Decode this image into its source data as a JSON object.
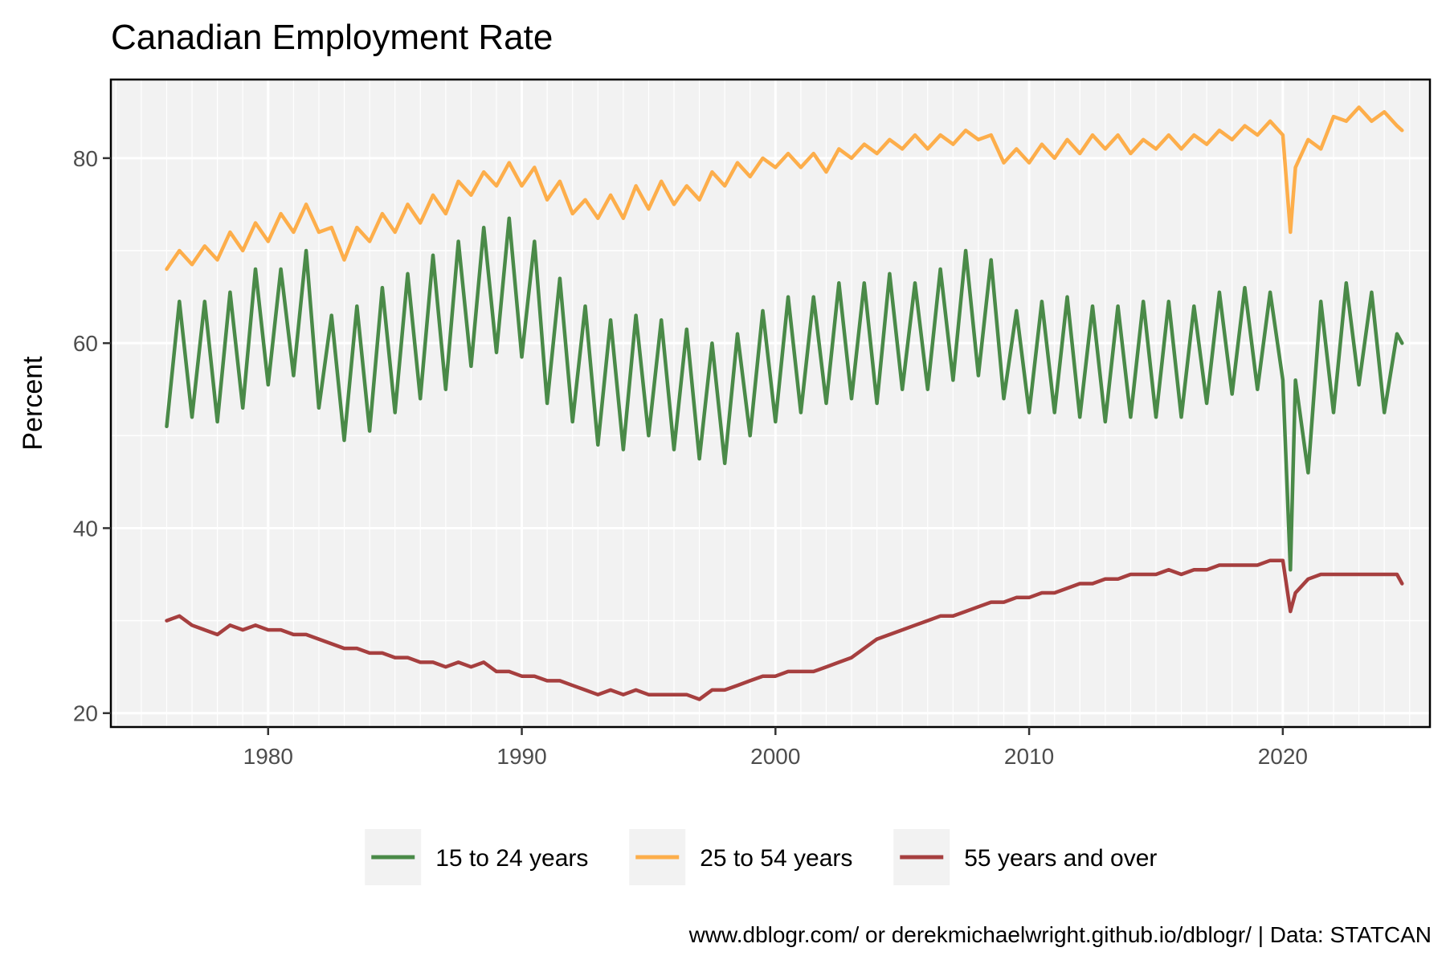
{
  "chart_data": {
    "type": "line",
    "title": "Canadian Employment Rate",
    "ylabel": "Percent",
    "xlabel": "",
    "caption": "www.dblogr.com/ or derekmichaelwright.github.io/dblogr/ | Data: STATCAN",
    "xlim": [
      1973.8,
      2025.8
    ],
    "ylim": [
      18.5,
      88.5
    ],
    "x_ticks": [
      1980,
      1990,
      2000,
      2010,
      2020
    ],
    "y_ticks": [
      20,
      40,
      60,
      80
    ],
    "grid": true,
    "legend_position": "bottom",
    "series": [
      {
        "name": "15 to 24 years",
        "color": "#4a8a48",
        "x": [
          1976.0,
          1976.5,
          1977.0,
          1977.5,
          1978.0,
          1978.5,
          1979.0,
          1979.5,
          1980.0,
          1980.5,
          1981.0,
          1981.5,
          1982.0,
          1982.5,
          1983.0,
          1983.5,
          1984.0,
          1984.5,
          1985.0,
          1985.5,
          1986.0,
          1986.5,
          1987.0,
          1987.5,
          1988.0,
          1988.5,
          1989.0,
          1989.5,
          1990.0,
          1990.5,
          1991.0,
          1991.5,
          1992.0,
          1992.5,
          1993.0,
          1993.5,
          1994.0,
          1994.5,
          1995.0,
          1995.5,
          1996.0,
          1996.5,
          1997.0,
          1997.5,
          1998.0,
          1998.5,
          1999.0,
          1999.5,
          2000.0,
          2000.5,
          2001.0,
          2001.5,
          2002.0,
          2002.5,
          2003.0,
          2003.5,
          2004.0,
          2004.5,
          2005.0,
          2005.5,
          2006.0,
          2006.5,
          2007.0,
          2007.5,
          2008.0,
          2008.5,
          2009.0,
          2009.5,
          2010.0,
          2010.5,
          2011.0,
          2011.5,
          2012.0,
          2012.5,
          2013.0,
          2013.5,
          2014.0,
          2014.5,
          2015.0,
          2015.5,
          2016.0,
          2016.5,
          2017.0,
          2017.5,
          2018.0,
          2018.5,
          2019.0,
          2019.5,
          2020.0,
          2020.3,
          2020.5,
          2021.0,
          2021.5,
          2022.0,
          2022.5,
          2023.0,
          2023.5,
          2024.0,
          2024.5,
          2024.7
        ],
        "y": [
          51,
          64.5,
          52,
          64.5,
          51.5,
          65.5,
          53,
          68,
          55.5,
          68,
          56.5,
          70,
          53,
          63,
          49.5,
          64,
          50.5,
          66,
          52.5,
          67.5,
          54,
          69.5,
          55,
          71,
          57.5,
          72.5,
          59,
          73.5,
          58.5,
          71,
          53.5,
          67,
          51.5,
          64,
          49,
          62.5,
          48.5,
          63,
          50,
          62.5,
          48.5,
          61.5,
          47.5,
          60,
          47,
          61,
          50,
          63.5,
          51.5,
          65,
          52.5,
          65,
          53.5,
          66.5,
          54,
          66.5,
          53.5,
          67.5,
          55,
          66.5,
          55,
          68,
          56,
          70,
          56.5,
          69,
          54,
          63.5,
          52.5,
          64.5,
          52.5,
          65,
          52,
          64,
          51.5,
          64,
          52,
          64.5,
          52,
          64.5,
          52,
          64,
          53.5,
          65.5,
          54.5,
          66,
          55,
          65.5,
          56,
          35.5,
          56,
          46,
          64.5,
          52.5,
          66.5,
          55.5,
          65.5,
          52.5,
          61,
          60
        ]
      },
      {
        "name": "25 to 54 years",
        "color": "#fdae4b",
        "x": [
          1976.0,
          1976.5,
          1977.0,
          1977.5,
          1978.0,
          1978.5,
          1979.0,
          1979.5,
          1980.0,
          1980.5,
          1981.0,
          1981.5,
          1982.0,
          1982.5,
          1983.0,
          1983.5,
          1984.0,
          1984.5,
          1985.0,
          1985.5,
          1986.0,
          1986.5,
          1987.0,
          1987.5,
          1988.0,
          1988.5,
          1989.0,
          1989.5,
          1990.0,
          1990.5,
          1991.0,
          1991.5,
          1992.0,
          1992.5,
          1993.0,
          1993.5,
          1994.0,
          1994.5,
          1995.0,
          1995.5,
          1996.0,
          1996.5,
          1997.0,
          1997.5,
          1998.0,
          1998.5,
          1999.0,
          1999.5,
          2000.0,
          2000.5,
          2001.0,
          2001.5,
          2002.0,
          2002.5,
          2003.0,
          2003.5,
          2004.0,
          2004.5,
          2005.0,
          2005.5,
          2006.0,
          2006.5,
          2007.0,
          2007.5,
          2008.0,
          2008.5,
          2009.0,
          2009.5,
          2010.0,
          2010.5,
          2011.0,
          2011.5,
          2012.0,
          2012.5,
          2013.0,
          2013.5,
          2014.0,
          2014.5,
          2015.0,
          2015.5,
          2016.0,
          2016.5,
          2017.0,
          2017.5,
          2018.0,
          2018.5,
          2019.0,
          2019.5,
          2020.0,
          2020.3,
          2020.5,
          2021.0,
          2021.5,
          2022.0,
          2022.5,
          2023.0,
          2023.5,
          2024.0,
          2024.5,
          2024.7
        ],
        "y": [
          68,
          70,
          68.5,
          70.5,
          69,
          72,
          70,
          73,
          71,
          74,
          72,
          75,
          72,
          72.5,
          69,
          72.5,
          71,
          74,
          72,
          75,
          73,
          76,
          74,
          77.5,
          76,
          78.5,
          77,
          79.5,
          77,
          79,
          75.5,
          77.5,
          74,
          75.5,
          73.5,
          76,
          73.5,
          77,
          74.5,
          77.5,
          75,
          77,
          75.5,
          78.5,
          77,
          79.5,
          78,
          80,
          79,
          80.5,
          79,
          80.5,
          78.5,
          81,
          80,
          81.5,
          80.5,
          82,
          81,
          82.5,
          81,
          82.5,
          81.5,
          83,
          82,
          82.5,
          79.5,
          81,
          79.5,
          81.5,
          80,
          82,
          80.5,
          82.5,
          81,
          82.5,
          80.5,
          82,
          81,
          82.5,
          81,
          82.5,
          81.5,
          83,
          82,
          83.5,
          82.5,
          84,
          82.5,
          72,
          79,
          82,
          81,
          84.5,
          84,
          85.5,
          84,
          85,
          83.5,
          83
        ]
      },
      {
        "name": "55 years and over",
        "color": "#a63f3f",
        "x": [
          1976.0,
          1976.5,
          1977.0,
          1977.5,
          1978.0,
          1978.5,
          1979.0,
          1979.5,
          1980.0,
          1980.5,
          1981.0,
          1981.5,
          1982.0,
          1982.5,
          1983.0,
          1983.5,
          1984.0,
          1984.5,
          1985.0,
          1985.5,
          1986.0,
          1986.5,
          1987.0,
          1987.5,
          1988.0,
          1988.5,
          1989.0,
          1989.5,
          1990.0,
          1990.5,
          1991.0,
          1991.5,
          1992.0,
          1992.5,
          1993.0,
          1993.5,
          1994.0,
          1994.5,
          1995.0,
          1995.5,
          1996.0,
          1996.5,
          1997.0,
          1997.5,
          1998.0,
          1998.5,
          1999.0,
          1999.5,
          2000.0,
          2000.5,
          2001.0,
          2001.5,
          2002.0,
          2002.5,
          2003.0,
          2003.5,
          2004.0,
          2004.5,
          2005.0,
          2005.5,
          2006.0,
          2006.5,
          2007.0,
          2007.5,
          2008.0,
          2008.5,
          2009.0,
          2009.5,
          2010.0,
          2010.5,
          2011.0,
          2011.5,
          2012.0,
          2012.5,
          2013.0,
          2013.5,
          2014.0,
          2014.5,
          2015.0,
          2015.5,
          2016.0,
          2016.5,
          2017.0,
          2017.5,
          2018.0,
          2018.5,
          2019.0,
          2019.5,
          2020.0,
          2020.3,
          2020.5,
          2021.0,
          2021.5,
          2022.0,
          2022.5,
          2023.0,
          2023.5,
          2024.0,
          2024.5,
          2024.7
        ],
        "y": [
          30,
          30.5,
          29.5,
          29,
          28.5,
          29.5,
          29,
          29.5,
          29,
          29,
          28.5,
          28.5,
          28,
          27.5,
          27,
          27,
          26.5,
          26.5,
          26,
          26,
          25.5,
          25.5,
          25,
          25.5,
          25,
          25.5,
          24.5,
          24.5,
          24,
          24,
          23.5,
          23.5,
          23,
          22.5,
          22,
          22.5,
          22,
          22.5,
          22,
          22,
          22,
          22,
          21.5,
          22.5,
          22.5,
          23,
          23.5,
          24,
          24,
          24.5,
          24.5,
          24.5,
          25,
          25.5,
          26,
          27,
          28,
          28.5,
          29,
          29.5,
          30,
          30.5,
          30.5,
          31,
          31.5,
          32,
          32,
          32.5,
          32.5,
          33,
          33,
          33.5,
          34,
          34,
          34.5,
          34.5,
          35,
          35,
          35,
          35.5,
          35,
          35.5,
          35.5,
          36,
          36,
          36,
          36,
          36.5,
          36.5,
          31,
          33,
          34.5,
          35,
          35,
          35,
          35,
          35,
          35,
          35,
          34
        ]
      }
    ]
  }
}
